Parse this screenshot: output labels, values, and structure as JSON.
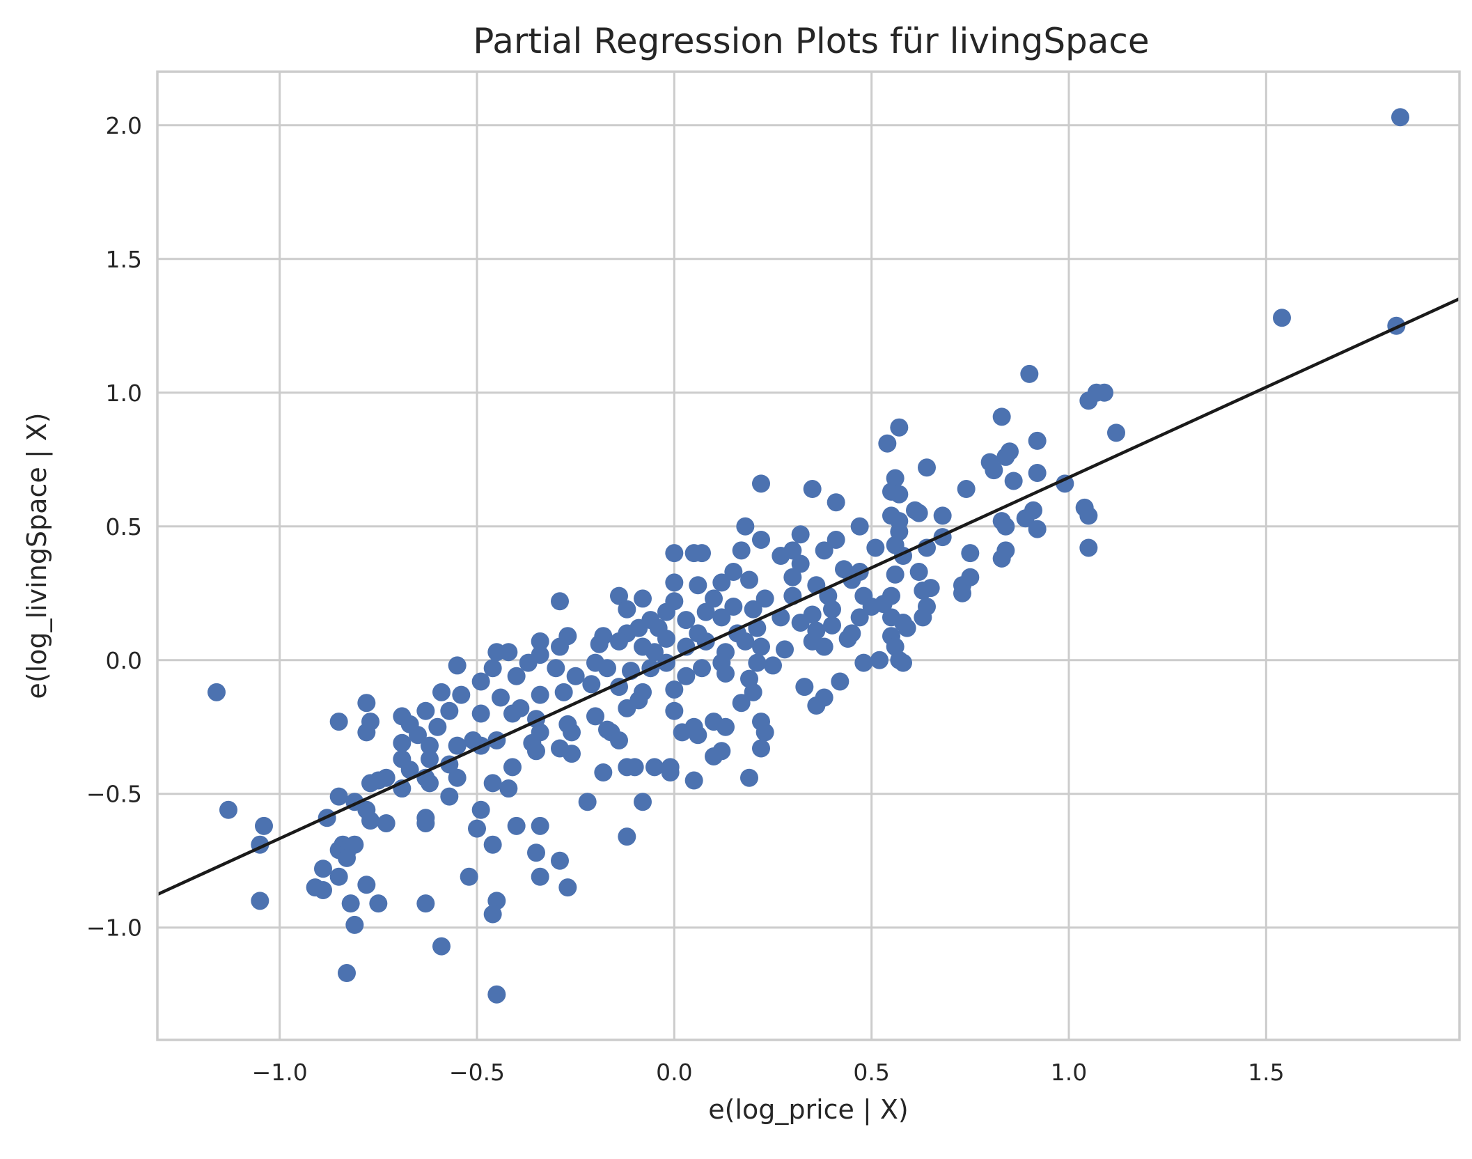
{
  "chart_data": {
    "type": "scatter",
    "title": "Partial Regression Plots für livingSpace",
    "xlabel": "e(log_price | X)",
    "ylabel": "e(log_livingSpace | X)",
    "xlim": [
      -1.31,
      1.99
    ],
    "ylim": [
      -1.42,
      2.2
    ],
    "xticks": [
      -1.0,
      -0.5,
      0.0,
      0.5,
      1.0,
      1.5
    ],
    "yticks": [
      -1.0,
      -0.5,
      0.0,
      0.5,
      1.0,
      1.5,
      2.0
    ],
    "xtick_labels": [
      "−1.0",
      "−0.5",
      "0.0",
      "0.5",
      "1.0",
      "1.5"
    ],
    "ytick_labels": [
      "−1.0",
      "−0.5",
      "0.0",
      "0.5",
      "1.0",
      "1.5",
      "2.0"
    ],
    "grid": true,
    "marker_color": "#4c72b0",
    "line_color": "#1a1a1a",
    "fit_line": {
      "slope": 0.675,
      "intercept": 0.008
    },
    "points": [
      [
        1.84,
        2.03
      ],
      [
        1.54,
        1.28
      ],
      [
        1.83,
        1.25
      ],
      [
        0.9,
        1.07
      ],
      [
        1.07,
        1.0
      ],
      [
        1.09,
        1.0
      ],
      [
        1.05,
        0.97
      ],
      [
        0.83,
        0.91
      ],
      [
        0.57,
        0.87
      ],
      [
        1.12,
        0.85
      ],
      [
        0.92,
        0.82
      ],
      [
        0.54,
        0.81
      ],
      [
        0.85,
        0.78
      ],
      [
        0.84,
        0.76
      ],
      [
        0.8,
        0.74
      ],
      [
        0.64,
        0.72
      ],
      [
        0.81,
        0.71
      ],
      [
        0.92,
        0.7
      ],
      [
        0.56,
        0.68
      ],
      [
        0.86,
        0.67
      ],
      [
        0.99,
        0.66
      ],
      [
        0.22,
        0.66
      ],
      [
        0.35,
        0.64
      ],
      [
        0.74,
        0.64
      ],
      [
        0.55,
        0.63
      ],
      [
        0.57,
        0.62
      ],
      [
        0.41,
        0.59
      ],
      [
        1.04,
        0.57
      ],
      [
        0.61,
        0.56
      ],
      [
        0.91,
        0.56
      ],
      [
        0.68,
        0.54
      ],
      [
        1.05,
        0.54
      ],
      [
        0.55,
        0.54
      ],
      [
        0.62,
        0.55
      ],
      [
        0.57,
        0.52
      ],
      [
        0.83,
        0.52
      ],
      [
        0.89,
        0.53
      ],
      [
        0.47,
        0.5
      ],
      [
        0.84,
        0.5
      ],
      [
        0.92,
        0.49
      ],
      [
        0.18,
        0.5
      ],
      [
        0.57,
        0.48
      ],
      [
        0.68,
        0.46
      ],
      [
        0.22,
        0.45
      ],
      [
        0.32,
        0.47
      ],
      [
        0.41,
        0.45
      ],
      [
        0.56,
        0.43
      ],
      [
        0.51,
        0.42
      ],
      [
        1.05,
        0.42
      ],
      [
        0.17,
        0.41
      ],
      [
        0.3,
        0.41
      ],
      [
        0.38,
        0.41
      ],
      [
        0.64,
        0.42
      ],
      [
        0.84,
        0.41
      ],
      [
        0.05,
        0.4
      ],
      [
        0.07,
        0.4
      ],
      [
        0.0,
        0.4
      ],
      [
        0.27,
        0.39
      ],
      [
        0.58,
        0.39
      ],
      [
        0.75,
        0.4
      ],
      [
        0.83,
        0.38
      ],
      [
        0.32,
        0.36
      ],
      [
        0.43,
        0.34
      ],
      [
        0.47,
        0.33
      ],
      [
        0.15,
        0.33
      ],
      [
        0.62,
        0.33
      ],
      [
        0.75,
        0.31
      ],
      [
        0.56,
        0.32
      ],
      [
        0.3,
        0.31
      ],
      [
        0.36,
        0.28
      ],
      [
        0.19,
        0.3
      ],
      [
        0.12,
        0.29
      ],
      [
        0.06,
        0.28
      ],
      [
        0.0,
        0.29
      ],
      [
        0.45,
        0.3
      ],
      [
        0.73,
        0.28
      ],
      [
        0.65,
        0.27
      ],
      [
        0.63,
        0.26
      ],
      [
        0.73,
        0.25
      ],
      [
        0.55,
        0.24
      ],
      [
        0.48,
        0.24
      ],
      [
        0.39,
        0.24
      ],
      [
        0.3,
        0.24
      ],
      [
        0.23,
        0.23
      ],
      [
        0.1,
        0.23
      ],
      [
        -0.08,
        0.23
      ],
      [
        -0.14,
        0.24
      ],
      [
        -0.29,
        0.22
      ],
      [
        0.0,
        0.22
      ],
      [
        0.15,
        0.2
      ],
      [
        0.64,
        0.2
      ],
      [
        0.4,
        0.19
      ],
      [
        0.53,
        0.21
      ],
      [
        0.5,
        0.2
      ],
      [
        0.2,
        0.19
      ],
      [
        0.08,
        0.18
      ],
      [
        -0.02,
        0.18
      ],
      [
        -0.12,
        0.19
      ],
      [
        0.55,
        0.16
      ],
      [
        0.63,
        0.16
      ],
      [
        0.47,
        0.16
      ],
      [
        0.35,
        0.17
      ],
      [
        0.27,
        0.16
      ],
      [
        0.12,
        0.16
      ],
      [
        0.03,
        0.15
      ],
      [
        -0.06,
        0.15
      ],
      [
        0.58,
        0.14
      ],
      [
        0.32,
        0.14
      ],
      [
        0.4,
        0.13
      ],
      [
        0.59,
        0.12
      ],
      [
        0.21,
        0.12
      ],
      [
        -0.04,
        0.12
      ],
      [
        -0.09,
        0.12
      ],
      [
        0.36,
        0.11
      ],
      [
        0.45,
        0.1
      ],
      [
        0.55,
        0.09
      ],
      [
        0.16,
        0.1
      ],
      [
        0.06,
        0.1
      ],
      [
        -0.12,
        0.1
      ],
      [
        -0.18,
        0.09
      ],
      [
        -0.27,
        0.09
      ],
      [
        0.44,
        0.08
      ],
      [
        0.35,
        0.07
      ],
      [
        0.18,
        0.07
      ],
      [
        0.08,
        0.07
      ],
      [
        -0.02,
        0.08
      ],
      [
        -0.14,
        0.07
      ],
      [
        -0.34,
        0.07
      ],
      [
        0.56,
        0.05
      ],
      [
        0.38,
        0.05
      ],
      [
        0.22,
        0.05
      ],
      [
        0.03,
        0.05
      ],
      [
        -0.08,
        0.05
      ],
      [
        -0.19,
        0.06
      ],
      [
        -0.29,
        0.05
      ],
      [
        0.28,
        0.04
      ],
      [
        0.13,
        0.03
      ],
      [
        -0.05,
        0.03
      ],
      [
        -0.42,
        0.03
      ],
      [
        -0.45,
        0.03
      ],
      [
        -0.34,
        0.02
      ],
      [
        0.52,
        0.0
      ],
      [
        0.57,
        0.0
      ],
      [
        0.48,
        -0.01
      ],
      [
        0.21,
        -0.01
      ],
      [
        0.12,
        -0.01
      ],
      [
        -0.02,
        -0.01
      ],
      [
        -0.2,
        -0.01
      ],
      [
        -0.37,
        -0.01
      ],
      [
        0.58,
        -0.01
      ],
      [
        0.25,
        -0.02
      ],
      [
        0.07,
        -0.03
      ],
      [
        -0.06,
        -0.03
      ],
      [
        -0.17,
        -0.03
      ],
      [
        -0.3,
        -0.03
      ],
      [
        -0.46,
        -0.03
      ],
      [
        -0.55,
        -0.02
      ],
      [
        -0.11,
        -0.04
      ],
      [
        0.13,
        -0.05
      ],
      [
        -0.4,
        -0.06
      ],
      [
        0.03,
        -0.06
      ],
      [
        -0.25,
        -0.06
      ],
      [
        0.19,
        -0.07
      ],
      [
        0.42,
        -0.08
      ],
      [
        -0.49,
        -0.08
      ],
      [
        -0.21,
        -0.09
      ],
      [
        -0.14,
        -0.1
      ],
      [
        0.33,
        -0.1
      ],
      [
        0.0,
        -0.11
      ],
      [
        -0.08,
        -0.12
      ],
      [
        0.2,
        -0.12
      ],
      [
        -0.59,
        -0.12
      ],
      [
        -1.16,
        -0.12
      ],
      [
        -0.28,
        -0.12
      ],
      [
        -0.34,
        -0.13
      ],
      [
        0.38,
        -0.14
      ],
      [
        -0.54,
        -0.13
      ],
      [
        -0.44,
        -0.14
      ],
      [
        -0.09,
        -0.15
      ],
      [
        0.17,
        -0.16
      ],
      [
        0.36,
        -0.17
      ],
      [
        -0.12,
        -0.18
      ],
      [
        -0.78,
        -0.16
      ],
      [
        -0.39,
        -0.18
      ],
      [
        -0.57,
        -0.19
      ],
      [
        -0.63,
        -0.19
      ],
      [
        0.0,
        -0.19
      ],
      [
        -0.49,
        -0.2
      ],
      [
        -0.41,
        -0.2
      ],
      [
        -0.69,
        -0.21
      ],
      [
        -0.2,
        -0.21
      ],
      [
        -0.35,
        -0.22
      ],
      [
        0.22,
        -0.23
      ],
      [
        0.1,
        -0.23
      ],
      [
        -0.77,
        -0.23
      ],
      [
        -0.85,
        -0.23
      ],
      [
        -0.27,
        -0.24
      ],
      [
        -0.67,
        -0.24
      ],
      [
        -0.6,
        -0.25
      ],
      [
        0.05,
        -0.25
      ],
      [
        -0.17,
        -0.26
      ],
      [
        0.13,
        -0.25
      ],
      [
        -0.34,
        -0.27
      ],
      [
        -0.26,
        -0.27
      ],
      [
        0.02,
        -0.27
      ],
      [
        -0.16,
        -0.27
      ],
      [
        0.23,
        -0.27
      ],
      [
        -0.65,
        -0.28
      ],
      [
        -0.78,
        -0.27
      ],
      [
        0.06,
        -0.28
      ],
      [
        -0.45,
        -0.3
      ],
      [
        -0.51,
        -0.3
      ],
      [
        -0.14,
        -0.3
      ],
      [
        -0.36,
        -0.31
      ],
      [
        -0.69,
        -0.31
      ],
      [
        -0.55,
        -0.32
      ],
      [
        -0.49,
        -0.32
      ],
      [
        -0.62,
        -0.32
      ],
      [
        0.22,
        -0.33
      ],
      [
        -0.29,
        -0.33
      ],
      [
        -0.35,
        -0.34
      ],
      [
        0.12,
        -0.34
      ],
      [
        -0.26,
        -0.35
      ],
      [
        0.1,
        -0.36
      ],
      [
        -0.69,
        -0.37
      ],
      [
        -0.62,
        -0.37
      ],
      [
        -0.57,
        -0.39
      ],
      [
        -0.41,
        -0.4
      ],
      [
        -0.12,
        -0.4
      ],
      [
        -0.1,
        -0.4
      ],
      [
        -0.05,
        -0.4
      ],
      [
        -0.01,
        -0.4
      ],
      [
        -0.67,
        -0.41
      ],
      [
        -0.18,
        -0.42
      ],
      [
        -0.01,
        -0.42
      ],
      [
        0.19,
        -0.44
      ],
      [
        -0.55,
        -0.44
      ],
      [
        -0.63,
        -0.44
      ],
      [
        -0.73,
        -0.44
      ],
      [
        -0.75,
        -0.45
      ],
      [
        0.05,
        -0.45
      ],
      [
        -0.62,
        -0.46
      ],
      [
        -0.77,
        -0.46
      ],
      [
        -0.46,
        -0.46
      ],
      [
        -0.42,
        -0.48
      ],
      [
        -0.69,
        -0.48
      ],
      [
        -0.57,
        -0.51
      ],
      [
        -0.85,
        -0.51
      ],
      [
        -0.22,
        -0.53
      ],
      [
        -0.08,
        -0.53
      ],
      [
        -0.81,
        -0.53
      ],
      [
        -0.49,
        -0.56
      ],
      [
        -0.78,
        -0.56
      ],
      [
        -1.13,
        -0.56
      ],
      [
        -0.88,
        -0.59
      ],
      [
        -0.63,
        -0.59
      ],
      [
        -0.77,
        -0.6
      ],
      [
        -0.73,
        -0.61
      ],
      [
        -0.63,
        -0.61
      ],
      [
        -1.04,
        -0.62
      ],
      [
        -0.4,
        -0.62
      ],
      [
        -0.34,
        -0.62
      ],
      [
        -0.5,
        -0.63
      ],
      [
        -0.12,
        -0.66
      ],
      [
        -1.05,
        -0.69
      ],
      [
        -0.84,
        -0.69
      ],
      [
        -0.81,
        -0.69
      ],
      [
        -0.46,
        -0.69
      ],
      [
        -0.85,
        -0.71
      ],
      [
        -0.83,
        -0.72
      ],
      [
        -0.35,
        -0.72
      ],
      [
        -0.83,
        -0.74
      ],
      [
        -0.29,
        -0.75
      ],
      [
        -0.89,
        -0.78
      ],
      [
        -0.85,
        -0.81
      ],
      [
        -0.34,
        -0.81
      ],
      [
        -0.52,
        -0.81
      ],
      [
        -0.78,
        -0.84
      ],
      [
        -0.91,
        -0.85
      ],
      [
        -0.27,
        -0.85
      ],
      [
        -0.89,
        -0.86
      ],
      [
        -1.05,
        -0.9
      ],
      [
        -0.45,
        -0.9
      ],
      [
        -0.63,
        -0.91
      ],
      [
        -0.82,
        -0.91
      ],
      [
        -0.75,
        -0.91
      ],
      [
        -0.46,
        -0.95
      ],
      [
        -0.81,
        -0.99
      ],
      [
        -0.59,
        -1.07
      ],
      [
        -0.83,
        -1.17
      ],
      [
        -0.45,
        -1.25
      ]
    ]
  }
}
